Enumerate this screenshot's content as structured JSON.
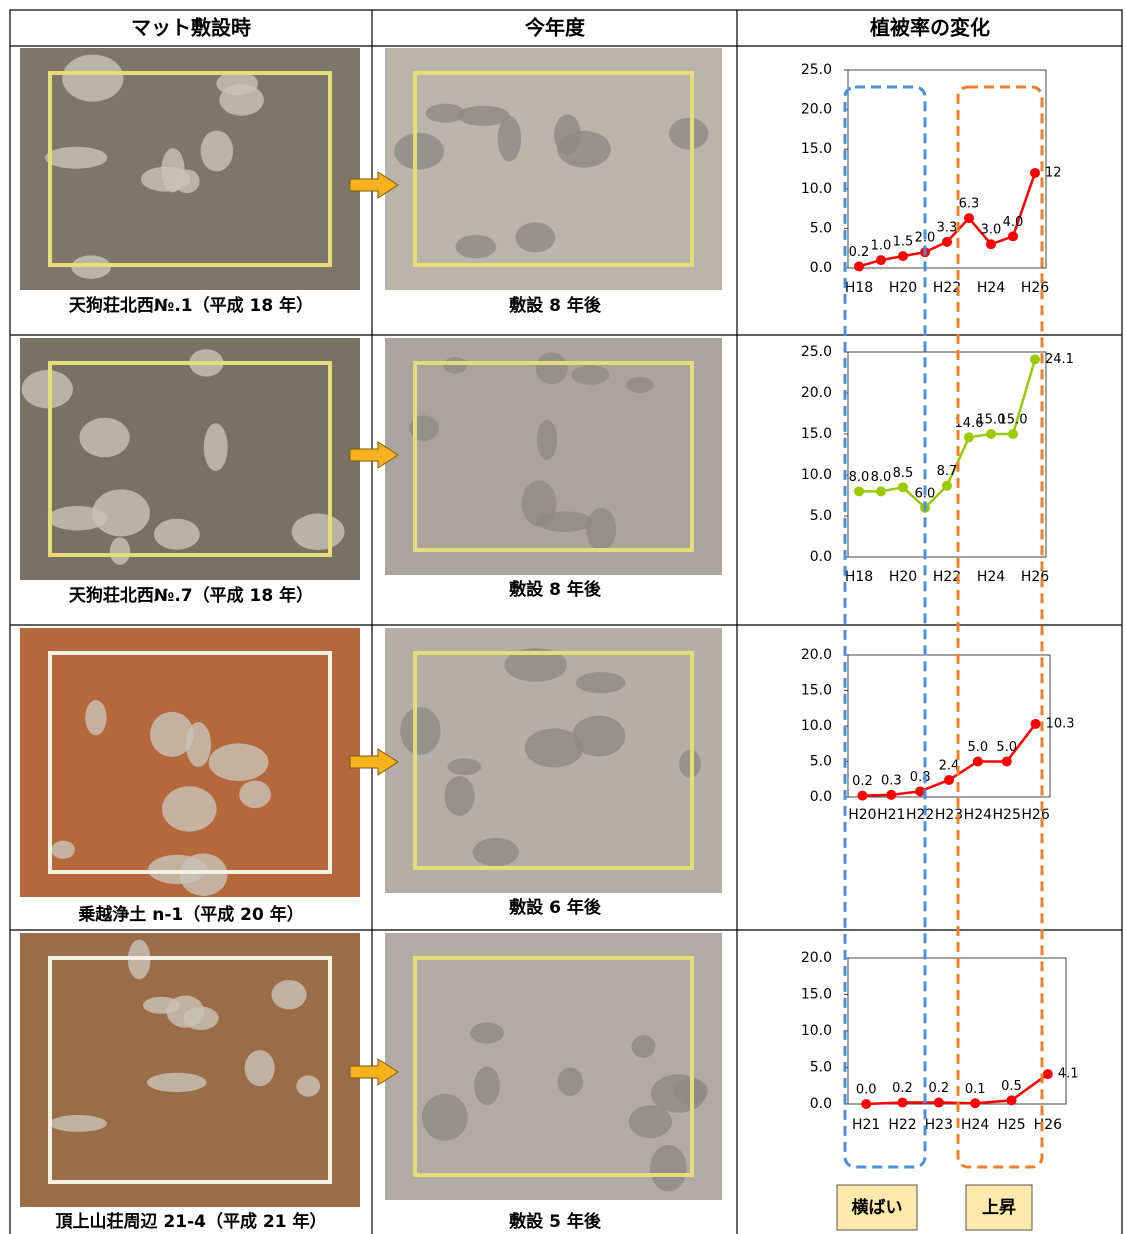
{
  "table": {
    "headers": [
      "マット敷設時",
      "今年度",
      "植被率の変化"
    ],
    "rows": [
      {
        "before_caption": "天狗荘北西№.1（平成 18 年）",
        "after_caption": "敷設 8 年後",
        "chart": {
          "type": "line",
          "categories": [
            "H18",
            null,
            "H20",
            null,
            "H22",
            null,
            "H24",
            null,
            "H26"
          ],
          "values": [
            0.2,
            1.0,
            1.5,
            2.0,
            3.3,
            6.3,
            3.0,
            4.0,
            12
          ],
          "value_labels": [
            "0.2",
            "1.0",
            "1.5",
            "2.0",
            "3.3",
            "6.3",
            "3.0",
            "4.0",
            "12"
          ],
          "color": "#ff0000",
          "ylim": [
            0,
            25
          ],
          "yticks": [
            {
              "value": 0,
              "label": "0.0"
            },
            {
              "value": 5,
              "label": "5.0"
            },
            {
              "value": 10,
              "label": "10.0"
            },
            {
              "value": 15,
              "label": "15.0"
            },
            {
              "value": 20,
              "label": "20.0"
            },
            {
              "value": 25,
              "label": "25.0"
            }
          ]
        }
      },
      {
        "before_caption": "天狗荘北西№.7（平成 18 年）",
        "after_caption": "敷設 8 年後",
        "chart": {
          "type": "line",
          "categories": [
            "H18",
            null,
            "H20",
            null,
            "H22",
            null,
            "H24",
            null,
            "H26"
          ],
          "values": [
            8.0,
            8.0,
            8.5,
            6.0,
            8.7,
            14.6,
            15.0,
            15.0,
            24.1
          ],
          "value_labels": [
            "8.0",
            "8.0",
            "8.5",
            "6.0",
            "8.7",
            "14.6",
            "15.0",
            "15.0",
            "24.1"
          ],
          "color": "#99cc00",
          "ylim": [
            0,
            25
          ],
          "yticks": [
            {
              "value": 0,
              "label": "0.0"
            },
            {
              "value": 5,
              "label": "5.0"
            },
            {
              "value": 10,
              "label": "10.0"
            },
            {
              "value": 15,
              "label": "15.0"
            },
            {
              "value": 20,
              "label": "20.0"
            },
            {
              "value": 25,
              "label": "25.0"
            }
          ]
        }
      },
      {
        "before_caption": "乗越浄土 n-1（平成 20 年）",
        "after_caption": "敷設 6 年後",
        "chart": {
          "type": "line",
          "categories": [
            "H20",
            "H21",
            "H22",
            "H23",
            "H24",
            "H25",
            "H26"
          ],
          "values": [
            0.2,
            0.3,
            0.8,
            2.4,
            5.0,
            5.0,
            10.3
          ],
          "value_labels": [
            "0.2",
            "0.3",
            "0.8",
            "2.4",
            "5.0",
            "5.0",
            "10.3"
          ],
          "color": "#ff0000",
          "ylim": [
            0,
            20
          ],
          "yticks": [
            {
              "value": 0,
              "label": "0.0"
            },
            {
              "value": 5,
              "label": "5.0"
            },
            {
              "value": 10,
              "label": "10.0"
            },
            {
              "value": 15,
              "label": "15.0"
            },
            {
              "value": 20,
              "label": "20.0"
            }
          ]
        }
      },
      {
        "before_caption": "頂上山荘周辺 21-4（平成 21 年）",
        "after_caption": "敷設 5 年後",
        "chart": {
          "type": "line",
          "categories": [
            "H21",
            "H22",
            "H23",
            "H24",
            "H25",
            "H26"
          ],
          "values": [
            0.0,
            0.2,
            0.2,
            0.1,
            0.5,
            4.1
          ],
          "value_labels": [
            "0.0",
            "0.2",
            "0.2",
            "0.1",
            "0.5",
            "4.1"
          ],
          "color": "#ff0000",
          "ylim": [
            0,
            20
          ],
          "yticks": [
            {
              "value": 0,
              "label": "0.0"
            },
            {
              "value": 5,
              "label": "5.0"
            },
            {
              "value": 10,
              "label": "10.0"
            },
            {
              "value": 15,
              "label": "15.0"
            },
            {
              "value": 20,
              "label": "20.0"
            }
          ]
        }
      }
    ],
    "annotations": [
      "横ばい",
      "上昇"
    ]
  }
}
